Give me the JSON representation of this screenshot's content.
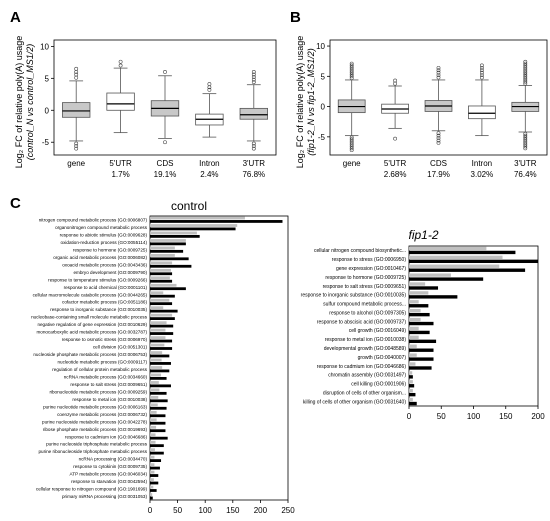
{
  "panels": {
    "A": {
      "letter": "A",
      "ylabel_line1": "Log₂ FC of relative poly(A) usage",
      "ylabel_line2": "(control_N vs control_MS1/2)"
    },
    "B": {
      "letter": "B",
      "ylabel_line1": "Log₂ FC of relative poly(A) usage",
      "ylabel_line2": "(fip1-2_N vs fip1-2_MS1/2)"
    },
    "C": {
      "letter": "C"
    }
  },
  "chart_data": [
    {
      "panel": "A",
      "type": "box",
      "title": "",
      "ylabel": "Log₂ FC of relative poly(A) usage (control_N vs control_MS1/2)",
      "ylim": [
        -7,
        11
      ],
      "yticks": [
        -5,
        0,
        5,
        10
      ],
      "grid": false,
      "categories": [
        "gene",
        "5'UTR",
        "CDS",
        "Intron",
        "3'UTR"
      ],
      "category_percents": [
        "",
        "1.7%",
        "19.1%",
        "2.4%",
        "76.8%"
      ],
      "boxes": [
        {
          "category": "gene",
          "fill": "gray",
          "whisker_low": -4.8,
          "q1": -1.1,
          "median": -0.1,
          "q3": 1.2,
          "whisker_high": 4.6,
          "outliers_low": [
            -5.2,
            -5.6,
            -6.0
          ],
          "outliers_high": [
            5.1,
            5.6,
            6.0,
            6.5
          ]
        },
        {
          "category": "5'UTR",
          "fill": "white",
          "whisker_low": -3.5,
          "q1": 0.0,
          "median": 1.0,
          "q3": 2.7,
          "whisker_high": 6.6,
          "outliers_low": [],
          "outliers_high": [
            7.0,
            7.6
          ]
        },
        {
          "category": "CDS",
          "fill": "gray",
          "whisker_low": -4.4,
          "q1": -0.9,
          "median": 0.3,
          "q3": 1.5,
          "whisker_high": 5.4,
          "outliers_low": [
            -5.0
          ],
          "outliers_high": [
            6.0
          ]
        },
        {
          "category": "Intron",
          "fill": "white",
          "whisker_low": -4.2,
          "q1": -2.3,
          "median": -1.4,
          "q3": -0.6,
          "whisker_high": 2.6,
          "outliers_low": [],
          "outliers_high": [
            3.2,
            3.6,
            4.1
          ]
        },
        {
          "category": "3'UTR",
          "fill": "gray",
          "whisker_low": -4.8,
          "q1": -1.4,
          "median": -0.7,
          "q3": 0.3,
          "whisker_high": 4.0,
          "outliers_low": [
            -5.2,
            -5.6,
            -6.0
          ],
          "outliers_high": [
            4.4,
            4.8,
            5.2,
            5.6,
            6.0
          ]
        }
      ]
    },
    {
      "panel": "B",
      "type": "box",
      "title": "",
      "ylabel": "Log₂ FC of relative poly(A) usage (fip1-2_N vs fip1-2_MS1/2)",
      "ylim": [
        -8,
        11
      ],
      "yticks": [
        -5,
        0,
        5,
        10
      ],
      "grid": false,
      "categories": [
        "gene",
        "5'UTR",
        "CDS",
        "Intron",
        "3'UTR"
      ],
      "category_percents": [
        "",
        "2.68%",
        "17.9%",
        "3.02%",
        "76.4%"
      ],
      "boxes": [
        {
          "category": "gene",
          "fill": "gray",
          "whisker_low": -4.8,
          "q1": -1.0,
          "median": 0.0,
          "q3": 1.1,
          "whisker_high": 4.4,
          "outliers_low": [
            -5.1,
            -5.4,
            -5.7,
            -6.0,
            -6.3,
            -6.6,
            -6.9,
            -7.2
          ],
          "outliers_high": [
            4.7,
            5.0,
            5.3,
            5.6,
            5.9,
            6.2,
            6.5,
            6.8,
            7.1
          ]
        },
        {
          "category": "5'UTR",
          "fill": "white",
          "whisker_low": -3.6,
          "q1": -1.1,
          "median": -0.4,
          "q3": 0.4,
          "whisker_high": 3.4,
          "outliers_low": [
            -5.3
          ],
          "outliers_high": [
            3.8,
            4.3
          ]
        },
        {
          "category": "CDS",
          "fill": "gray",
          "whisker_low": -4.0,
          "q1": -0.8,
          "median": 0.1,
          "q3": 1.0,
          "whisker_high": 4.4,
          "outliers_low": [
            -4.4,
            -4.8,
            -5.2,
            -5.6,
            -6.0
          ],
          "outliers_high": [
            4.8,
            5.2,
            5.6,
            6.0,
            6.4
          ]
        },
        {
          "category": "Intron",
          "fill": "white",
          "whisker_low": -4.8,
          "q1": -2.0,
          "median": -1.1,
          "q3": 0.1,
          "whisker_high": 4.4,
          "outliers_low": [],
          "outliers_high": [
            4.8,
            5.2,
            5.6,
            6.0,
            6.4,
            6.8
          ]
        },
        {
          "category": "3'UTR",
          "fill": "gray",
          "whisker_low": -4.2,
          "q1": -0.8,
          "median": 0.0,
          "q3": 0.7,
          "whisker_high": 3.5,
          "outliers_low": [
            -4.5,
            -4.8,
            -5.1,
            -5.4,
            -5.7,
            -6.0,
            -6.3,
            -6.6,
            -6.9
          ],
          "outliers_high": [
            3.8,
            4.1,
            4.4,
            4.7,
            5.0,
            5.3,
            5.6,
            5.9,
            6.2,
            6.5,
            6.8,
            7.1,
            7.4
          ]
        }
      ]
    },
    {
      "panel": "C",
      "type": "bar",
      "orientation": "horizontal",
      "title": "control",
      "xlim": [
        0,
        250
      ],
      "xticks": [
        0,
        50,
        100,
        150,
        200,
        250
      ],
      "grid": false,
      "series_colors": [
        "#c0c0c0",
        "#000000"
      ],
      "categories": [
        "nitrogen compound metabolic process (GO:0006807)",
        "organonitrogen compound metabolic process",
        "response to abiotic stimulus (GO:0009628)",
        "oxidation-reduction process (GO:0055114)",
        "response to hormone (GO:0009725)",
        "organic acid metabolic process (GO:0006082)",
        "oxoacid metabolic process (GO:0043436)",
        "embryo development (GO:0009790)",
        "response to temperature stimulus (GO:0009266)",
        "response to acid chemical (GO:0001101)",
        "cellular macromolecule catabolic process (GO:0044265)",
        "cofactor metabolic process (GO:0051186)",
        "response to inorganic substance (GO:0010035)",
        "nucleobase-containing small molecule metabolic process",
        "negative regulation of gene expression (GO:0010629)",
        "monocarboxylic acid metabolic process (GO:0032787)",
        "response to osmotic stress (GO:0006970)",
        "cell division (GO:0051301)",
        "nucleoside phosphate metabolic process (GO:0006753)",
        "nucleotide metabolic process (GO:0009117)",
        "regulation of cellular protein metabolic process",
        "ncRNA metabolic process (GO:0034660)",
        "response to salt stress (GO:0009651)",
        "ribonucleotide metabolic process (GO:0009259)",
        "response to metal ion (GO:0010038)",
        "purine nucleotide metabolic process (GO:0006163)",
        "coenzyme metabolic process (GO:0006732)",
        "purine nucleoside metabolic process (GO:0042278)",
        "ribose phosphate metabolic process (GO:0019693)",
        "response to cadmium ion (GO:0046686)",
        "purine nucleoside triphosphate metabolic process",
        "purine ribonucleoside triphosphate metabolic process",
        "ncRNA processing (GO:0034470)",
        "response to cytokinin (GO:0009735)",
        "ATP metabolic process (GO:0046034)",
        "response to starvation (GO:0042594)",
        "cellular response to nitrogen compound (GO:1901699)",
        "primary miRNA processing (GO:0031053)"
      ],
      "series": [
        {
          "values": [
            172,
            158,
            85,
            65,
            45,
            45,
            40,
            38,
            36,
            48,
            24,
            35,
            24,
            40,
            30,
            28,
            28,
            26,
            22,
            21,
            22,
            20,
            16,
            17,
            15,
            14,
            12,
            12,
            11,
            10,
            10,
            9,
            8,
            8,
            8,
            7,
            6,
            4
          ]
        },
        {
          "values": [
            240,
            155,
            90,
            65,
            60,
            70,
            75,
            40,
            40,
            65,
            45,
            40,
            50,
            45,
            42,
            42,
            40,
            40,
            35,
            38,
            35,
            30,
            38,
            30,
            32,
            30,
            28,
            28,
            28,
            32,
            25,
            25,
            20,
            18,
            15,
            15,
            12,
            5
          ]
        }
      ]
    },
    {
      "panel": "C",
      "type": "bar",
      "orientation": "horizontal",
      "title": "fip1-2",
      "xlim": [
        0,
        200
      ],
      "xticks": [
        0,
        50,
        100,
        150,
        200
      ],
      "grid": false,
      "series_colors": [
        "#c0c0c0",
        "#000000"
      ],
      "categories": [
        "cellular nitrogen compound biosynthetic...",
        "response to stress (GO:0006950)",
        "gene expression (GO:0010467)",
        "response to hormone (GO:0009725)",
        "response to salt stress (GO:0009651)",
        "response to inorganic substance (GO:0010035)",
        "sulfur compound metabolic process...",
        "response to alcohol (GO:0097305)",
        "response to abscisic acid (GO:0009737)",
        "cell growth (GO:0016049)",
        "response to metal ion (GO:0010038)",
        "developmental growth (GO:0048589)",
        "growth (GO:0040007)",
        "response to cadmium ion (GO:0046686)",
        "chromatin assembly (GO:0031497)",
        "cell killing (GO:0001906)",
        "disruption of cells of other organism...",
        "killing of cells of other organism (GO:0031640)"
      ],
      "series": [
        {
          "values": [
            120,
            145,
            140,
            65,
            25,
            30,
            15,
            18,
            18,
            15,
            15,
            12,
            12,
            10,
            5,
            6,
            6,
            6
          ]
        },
        {
          "values": [
            165,
            200,
            180,
            115,
            45,
            75,
            30,
            32,
            38,
            32,
            42,
            38,
            38,
            35,
            6,
            8,
            10,
            12
          ]
        }
      ]
    }
  ]
}
